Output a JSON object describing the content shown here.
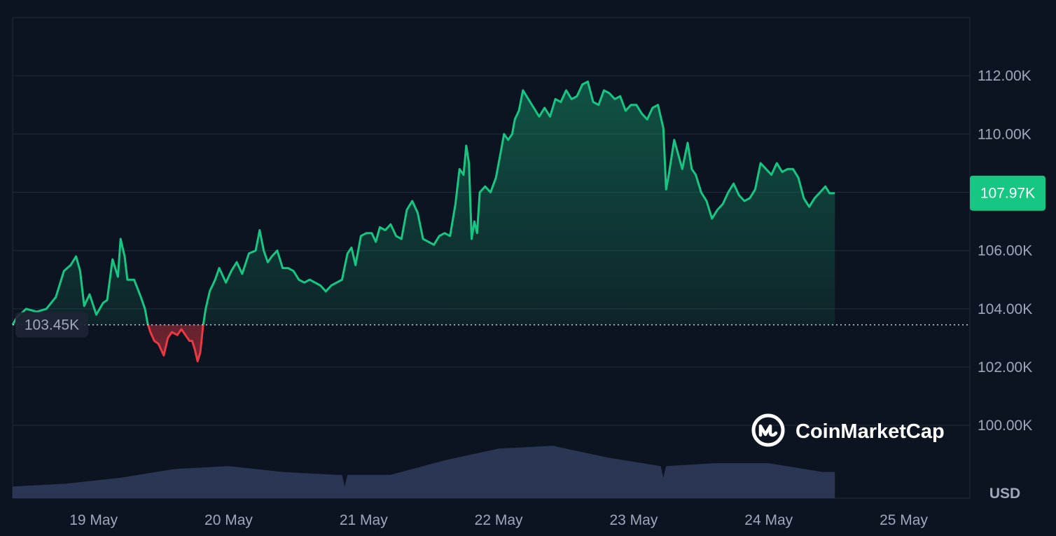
{
  "colors": {
    "background": "#0d1421",
    "grid": "#222b3a",
    "axis_text": "#a1a7bb",
    "up": "#16c784",
    "down": "#ea3943",
    "volume": "#303c5c",
    "baseline_badge": "#1e2433",
    "last_price_badge": "#16c784",
    "logo": "#ffffff"
  },
  "branding": {
    "logo_text": "CoinMarketCap",
    "logo_icon": "coinmarketcap-logo-icon"
  },
  "chart_data": {
    "type": "area",
    "currency": "USD",
    "baseline_price": 103.45,
    "baseline_label": "103.45K",
    "last_price": 107.97,
    "last_price_label": "107.97K",
    "x_range_days": [
      0,
      7.09
    ],
    "ylim": [
      97.5,
      114
    ],
    "y_ticks": [
      {
        "value": 100,
        "label": "100.00K"
      },
      {
        "value": 102,
        "label": "102.00K"
      },
      {
        "value": 104,
        "label": "104.00K"
      },
      {
        "value": 106,
        "label": "106.00K"
      },
      {
        "value": 110,
        "label": "110.00K"
      },
      {
        "value": 112,
        "label": "112.00K"
      }
    ],
    "x_ticks": [
      {
        "value": 0.6,
        "label": "19 May"
      },
      {
        "value": 1.6,
        "label": "20 May"
      },
      {
        "value": 2.6,
        "label": "21 May"
      },
      {
        "value": 3.6,
        "label": "22 May"
      },
      {
        "value": 4.6,
        "label": "23 May"
      },
      {
        "value": 5.6,
        "label": "24 May"
      },
      {
        "value": 6.6,
        "label": "25 May"
      }
    ],
    "price_unit": "thousand USD",
    "price_series": [
      [
        0.0,
        103.45
      ],
      [
        0.03,
        103.7
      ],
      [
        0.1,
        104.0
      ],
      [
        0.18,
        103.9
      ],
      [
        0.25,
        104.0
      ],
      [
        0.32,
        104.4
      ],
      [
        0.38,
        105.3
      ],
      [
        0.43,
        105.5
      ],
      [
        0.47,
        105.8
      ],
      [
        0.5,
        105.3
      ],
      [
        0.53,
        104.1
      ],
      [
        0.57,
        104.5
      ],
      [
        0.62,
        103.8
      ],
      [
        0.67,
        104.2
      ],
      [
        0.7,
        104.3
      ],
      [
        0.74,
        105.7
      ],
      [
        0.78,
        105.1
      ],
      [
        0.8,
        106.4
      ],
      [
        0.83,
        105.8
      ],
      [
        0.85,
        105.0
      ],
      [
        0.9,
        105.0
      ],
      [
        0.95,
        104.4
      ],
      [
        0.98,
        104.0
      ],
      [
        1.0,
        103.5
      ],
      [
        1.02,
        103.2
      ],
      [
        1.05,
        102.9
      ],
      [
        1.08,
        102.8
      ],
      [
        1.1,
        102.6
      ],
      [
        1.12,
        102.4
      ],
      [
        1.15,
        103.0
      ],
      [
        1.18,
        103.2
      ],
      [
        1.22,
        103.1
      ],
      [
        1.25,
        103.3
      ],
      [
        1.28,
        103.1
      ],
      [
        1.31,
        102.9
      ],
      [
        1.33,
        102.9
      ],
      [
        1.35,
        102.6
      ],
      [
        1.37,
        102.2
      ],
      [
        1.39,
        102.5
      ],
      [
        1.41,
        103.4
      ],
      [
        1.43,
        104.0
      ],
      [
        1.46,
        104.6
      ],
      [
        1.5,
        105.0
      ],
      [
        1.53,
        105.4
      ],
      [
        1.56,
        105.1
      ],
      [
        1.58,
        104.9
      ],
      [
        1.62,
        105.3
      ],
      [
        1.66,
        105.6
      ],
      [
        1.7,
        105.2
      ],
      [
        1.75,
        105.9
      ],
      [
        1.8,
        106.0
      ],
      [
        1.83,
        106.7
      ],
      [
        1.86,
        106.0
      ],
      [
        1.89,
        105.6
      ],
      [
        1.92,
        105.8
      ],
      [
        1.96,
        106.0
      ],
      [
        2.0,
        105.4
      ],
      [
        2.04,
        105.4
      ],
      [
        2.08,
        105.3
      ],
      [
        2.12,
        105.0
      ],
      [
        2.16,
        104.9
      ],
      [
        2.2,
        105.0
      ],
      [
        2.24,
        104.9
      ],
      [
        2.28,
        104.8
      ],
      [
        2.32,
        104.6
      ],
      [
        2.36,
        104.8
      ],
      [
        2.4,
        104.9
      ],
      [
        2.44,
        105.0
      ],
      [
        2.48,
        105.9
      ],
      [
        2.51,
        106.1
      ],
      [
        2.54,
        105.5
      ],
      [
        2.58,
        106.5
      ],
      [
        2.62,
        106.6
      ],
      [
        2.66,
        106.6
      ],
      [
        2.69,
        106.3
      ],
      [
        2.72,
        106.8
      ],
      [
        2.76,
        106.7
      ],
      [
        2.8,
        106.9
      ],
      [
        2.84,
        106.5
      ],
      [
        2.88,
        106.4
      ],
      [
        2.92,
        107.4
      ],
      [
        2.96,
        107.7
      ],
      [
        3.0,
        107.3
      ],
      [
        3.04,
        106.4
      ],
      [
        3.08,
        106.3
      ],
      [
        3.12,
        106.2
      ],
      [
        3.16,
        106.5
      ],
      [
        3.2,
        106.6
      ],
      [
        3.24,
        106.5
      ],
      [
        3.28,
        107.6
      ],
      [
        3.31,
        108.8
      ],
      [
        3.34,
        108.6
      ],
      [
        3.36,
        109.6
      ],
      [
        3.38,
        109.0
      ],
      [
        3.4,
        106.4
      ],
      [
        3.42,
        107.0
      ],
      [
        3.44,
        106.6
      ],
      [
        3.46,
        108.0
      ],
      [
        3.5,
        108.2
      ],
      [
        3.54,
        108.0
      ],
      [
        3.58,
        108.5
      ],
      [
        3.62,
        109.5
      ],
      [
        3.64,
        110.0
      ],
      [
        3.67,
        109.8
      ],
      [
        3.7,
        110.0
      ],
      [
        3.72,
        110.5
      ],
      [
        3.75,
        110.8
      ],
      [
        3.78,
        111.5
      ],
      [
        3.82,
        111.2
      ],
      [
        3.86,
        110.9
      ],
      [
        3.9,
        110.6
      ],
      [
        3.94,
        110.9
      ],
      [
        3.98,
        110.6
      ],
      [
        4.02,
        111.2
      ],
      [
        4.06,
        111.1
      ],
      [
        4.1,
        111.5
      ],
      [
        4.14,
        111.2
      ],
      [
        4.18,
        111.3
      ],
      [
        4.22,
        111.7
      ],
      [
        4.26,
        111.8
      ],
      [
        4.3,
        111.1
      ],
      [
        4.34,
        111.0
      ],
      [
        4.38,
        111.5
      ],
      [
        4.42,
        111.4
      ],
      [
        4.46,
        111.2
      ],
      [
        4.5,
        111.3
      ],
      [
        4.54,
        110.8
      ],
      [
        4.58,
        111.0
      ],
      [
        4.62,
        111.0
      ],
      [
        4.66,
        110.7
      ],
      [
        4.7,
        110.5
      ],
      [
        4.74,
        110.9
      ],
      [
        4.78,
        111.0
      ],
      [
        4.82,
        110.2
      ],
      [
        4.84,
        108.1
      ],
      [
        4.86,
        108.6
      ],
      [
        4.88,
        109.2
      ],
      [
        4.9,
        109.8
      ],
      [
        4.93,
        109.3
      ],
      [
        4.96,
        108.8
      ],
      [
        5.0,
        109.7
      ],
      [
        5.03,
        108.8
      ],
      [
        5.06,
        108.6
      ],
      [
        5.1,
        108.0
      ],
      [
        5.14,
        107.7
      ],
      [
        5.18,
        107.1
      ],
      [
        5.22,
        107.4
      ],
      [
        5.26,
        107.6
      ],
      [
        5.3,
        108.0
      ],
      [
        5.34,
        108.3
      ],
      [
        5.38,
        107.9
      ],
      [
        5.42,
        107.7
      ],
      [
        5.46,
        107.8
      ],
      [
        5.5,
        108.1
      ],
      [
        5.54,
        109.0
      ],
      [
        5.58,
        108.8
      ],
      [
        5.62,
        108.6
      ],
      [
        5.66,
        109.0
      ],
      [
        5.7,
        108.7
      ],
      [
        5.74,
        108.8
      ],
      [
        5.78,
        108.8
      ],
      [
        5.82,
        108.5
      ],
      [
        5.86,
        107.8
      ],
      [
        5.9,
        107.5
      ],
      [
        5.94,
        107.8
      ],
      [
        5.98,
        108.0
      ],
      [
        6.02,
        108.2
      ],
      [
        6.05,
        107.97
      ],
      [
        6.09,
        107.97
      ]
    ],
    "price_series_note_days_offset_from_18_May_12h_UTC": true,
    "volume_series": [
      [
        0.0,
        97.9
      ],
      [
        0.4,
        98.0
      ],
      [
        0.8,
        98.2
      ],
      [
        1.2,
        98.5
      ],
      [
        1.6,
        98.6
      ],
      [
        2.0,
        98.4
      ],
      [
        2.4,
        98.3
      ],
      [
        2.44,
        98.3
      ],
      [
        2.46,
        97.9
      ],
      [
        2.48,
        98.3
      ],
      [
        2.8,
        98.3
      ],
      [
        3.2,
        98.8
      ],
      [
        3.6,
        99.2
      ],
      [
        4.0,
        99.3
      ],
      [
        4.4,
        98.9
      ],
      [
        4.8,
        98.6
      ],
      [
        4.82,
        98.2
      ],
      [
        4.84,
        98.6
      ],
      [
        5.2,
        98.7
      ],
      [
        5.6,
        98.7
      ],
      [
        6.0,
        98.4
      ],
      [
        6.09,
        98.4
      ]
    ]
  }
}
